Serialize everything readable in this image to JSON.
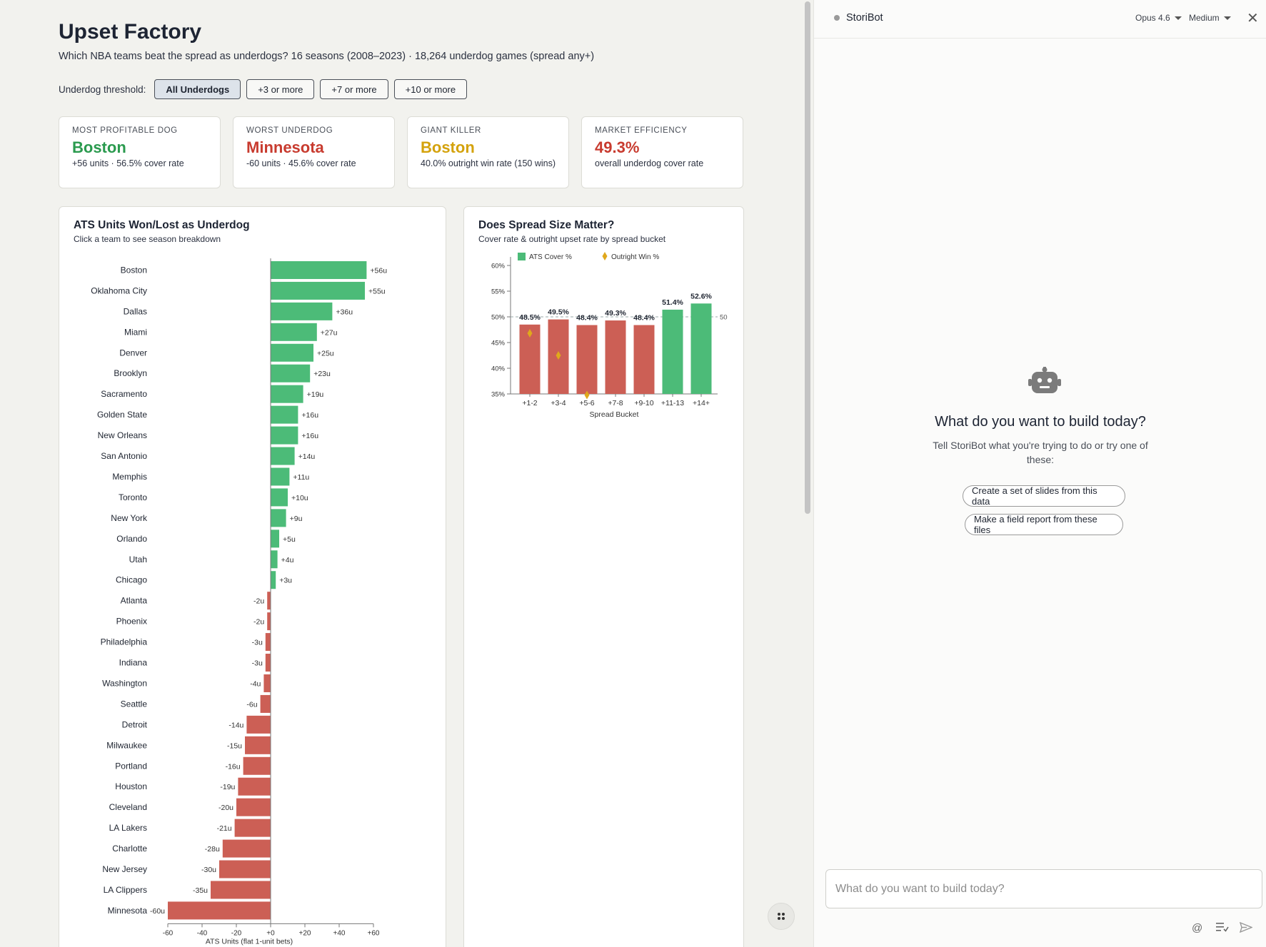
{
  "app": {
    "title": "Upset Factory",
    "subtitle": "Which NBA teams beat the spread as underdogs? 16 seasons (2008–2023) · 18,264 underdog games (spread any+)"
  },
  "filters": {
    "label": "Underdog threshold:",
    "options": [
      "All Underdogs",
      "+3 or more",
      "+7 or more",
      "+10 or more"
    ],
    "selected": "All Underdogs"
  },
  "kpis": [
    {
      "label": "Most Profitable Dog",
      "value": "Boston",
      "sub": "+56 units · 56.5% cover rate",
      "color": "#2a9a4e"
    },
    {
      "label": "Worst Underdog",
      "value": "Minnesota",
      "sub": "-60 units · 45.6% cover rate",
      "color": "#c83b2f"
    },
    {
      "label": "Giant Killer",
      "value": "Boston",
      "sub": "40.0% outright win rate (150 wins)",
      "color": "#d4a20c"
    },
    {
      "label": "Market Efficiency",
      "value": "49.3%",
      "sub": "overall underdog cover rate",
      "color": "#c83b2f"
    }
  ],
  "ats_panel": {
    "title": "ATS Units Won/Lost as Underdog",
    "subtitle": "Click a team to see season breakdown"
  },
  "spread_panel": {
    "title": "Does Spread Size Matter?",
    "subtitle": "Cover rate & outright upset rate by spread bucket"
  },
  "colors": {
    "positive": "#4cbb78",
    "negative": "#cc5f55",
    "diamond": "#e0a81c",
    "accent": "#2a9a4e"
  },
  "chart_data": [
    {
      "type": "bar",
      "orientation": "horizontal",
      "title": "ATS Units Won/Lost as Underdog",
      "xlabel": "ATS Units (flat 1-unit bets)",
      "xlim": [
        -60,
        60
      ],
      "xticks": [
        "-60",
        "-40",
        "-20",
        "+0",
        "+20",
        "+40",
        "+60"
      ],
      "categories": [
        "Boston",
        "Oklahoma City",
        "Dallas",
        "Miami",
        "Denver",
        "Brooklyn",
        "Sacramento",
        "Golden State",
        "New Orleans",
        "San Antonio",
        "Memphis",
        "Toronto",
        "New York",
        "Orlando",
        "Utah",
        "Chicago",
        "Atlanta",
        "Phoenix",
        "Philadelphia",
        "Indiana",
        "Washington",
        "Seattle",
        "Detroit",
        "Milwaukee",
        "Portland",
        "Houston",
        "Cleveland",
        "LA Lakers",
        "Charlotte",
        "New Jersey",
        "LA Clippers",
        "Minnesota"
      ],
      "values": [
        56,
        55,
        36,
        27,
        25,
        23,
        19,
        16,
        16,
        14,
        11,
        10,
        9,
        5,
        4,
        3,
        -2,
        -2,
        -3,
        -3,
        -4,
        -6,
        -14,
        -15,
        -16,
        -19,
        -20,
        -21,
        -28,
        -30,
        -35,
        -60
      ],
      "labels": [
        "+56u",
        "+55u",
        "+36u",
        "+27u",
        "+25u",
        "+23u",
        "+19u",
        "+16u",
        "+16u",
        "+14u",
        "+11u",
        "+10u",
        "+9u",
        "+5u",
        "+4u",
        "+3u",
        "-2u",
        "-2u",
        "-3u",
        "-3u",
        "-4u",
        "-6u",
        "-14u",
        "-15u",
        "-16u",
        "-19u",
        "-20u",
        "-21u",
        "-28u",
        "-30u",
        "-35u",
        "-60u"
      ]
    },
    {
      "type": "bar",
      "title": "Does Spread Size Matter?",
      "xlabel": "Spread Bucket",
      "ylim": [
        35,
        60
      ],
      "yticks": [
        "35%",
        "40%",
        "45%",
        "50%",
        "55%",
        "60%"
      ],
      "reference_line": {
        "value": 50,
        "label": "50"
      },
      "categories": [
        "+1-2",
        "+3-4",
        "+5-6",
        "+7-8",
        "+9-10",
        "+11-13",
        "+14+"
      ],
      "series": [
        {
          "name": "ATS Cover %",
          "values": [
            48.5,
            49.5,
            48.4,
            49.3,
            48.4,
            51.4,
            52.6
          ],
          "labels": [
            "48.5%",
            "49.5%",
            "48.4%",
            "49.3%",
            "48.4%",
            "51.4%",
            "52.6%"
          ]
        },
        {
          "name": "Outright Win %",
          "values": [
            46.8,
            42.5,
            34.8,
            null,
            null,
            null,
            null
          ]
        }
      ]
    }
  ],
  "sidebar": {
    "bot_name": "StoriBot",
    "model": "Opus 4.6",
    "effort": "Medium",
    "welcome_title": "What do you want to build today?",
    "welcome_sub": "Tell StoriBot what you're trying to do or try one of these:",
    "suggestions": [
      "Create a set of slides from this data",
      "Make a field report from these files"
    ],
    "composer_placeholder": "What do you want to build today?"
  }
}
